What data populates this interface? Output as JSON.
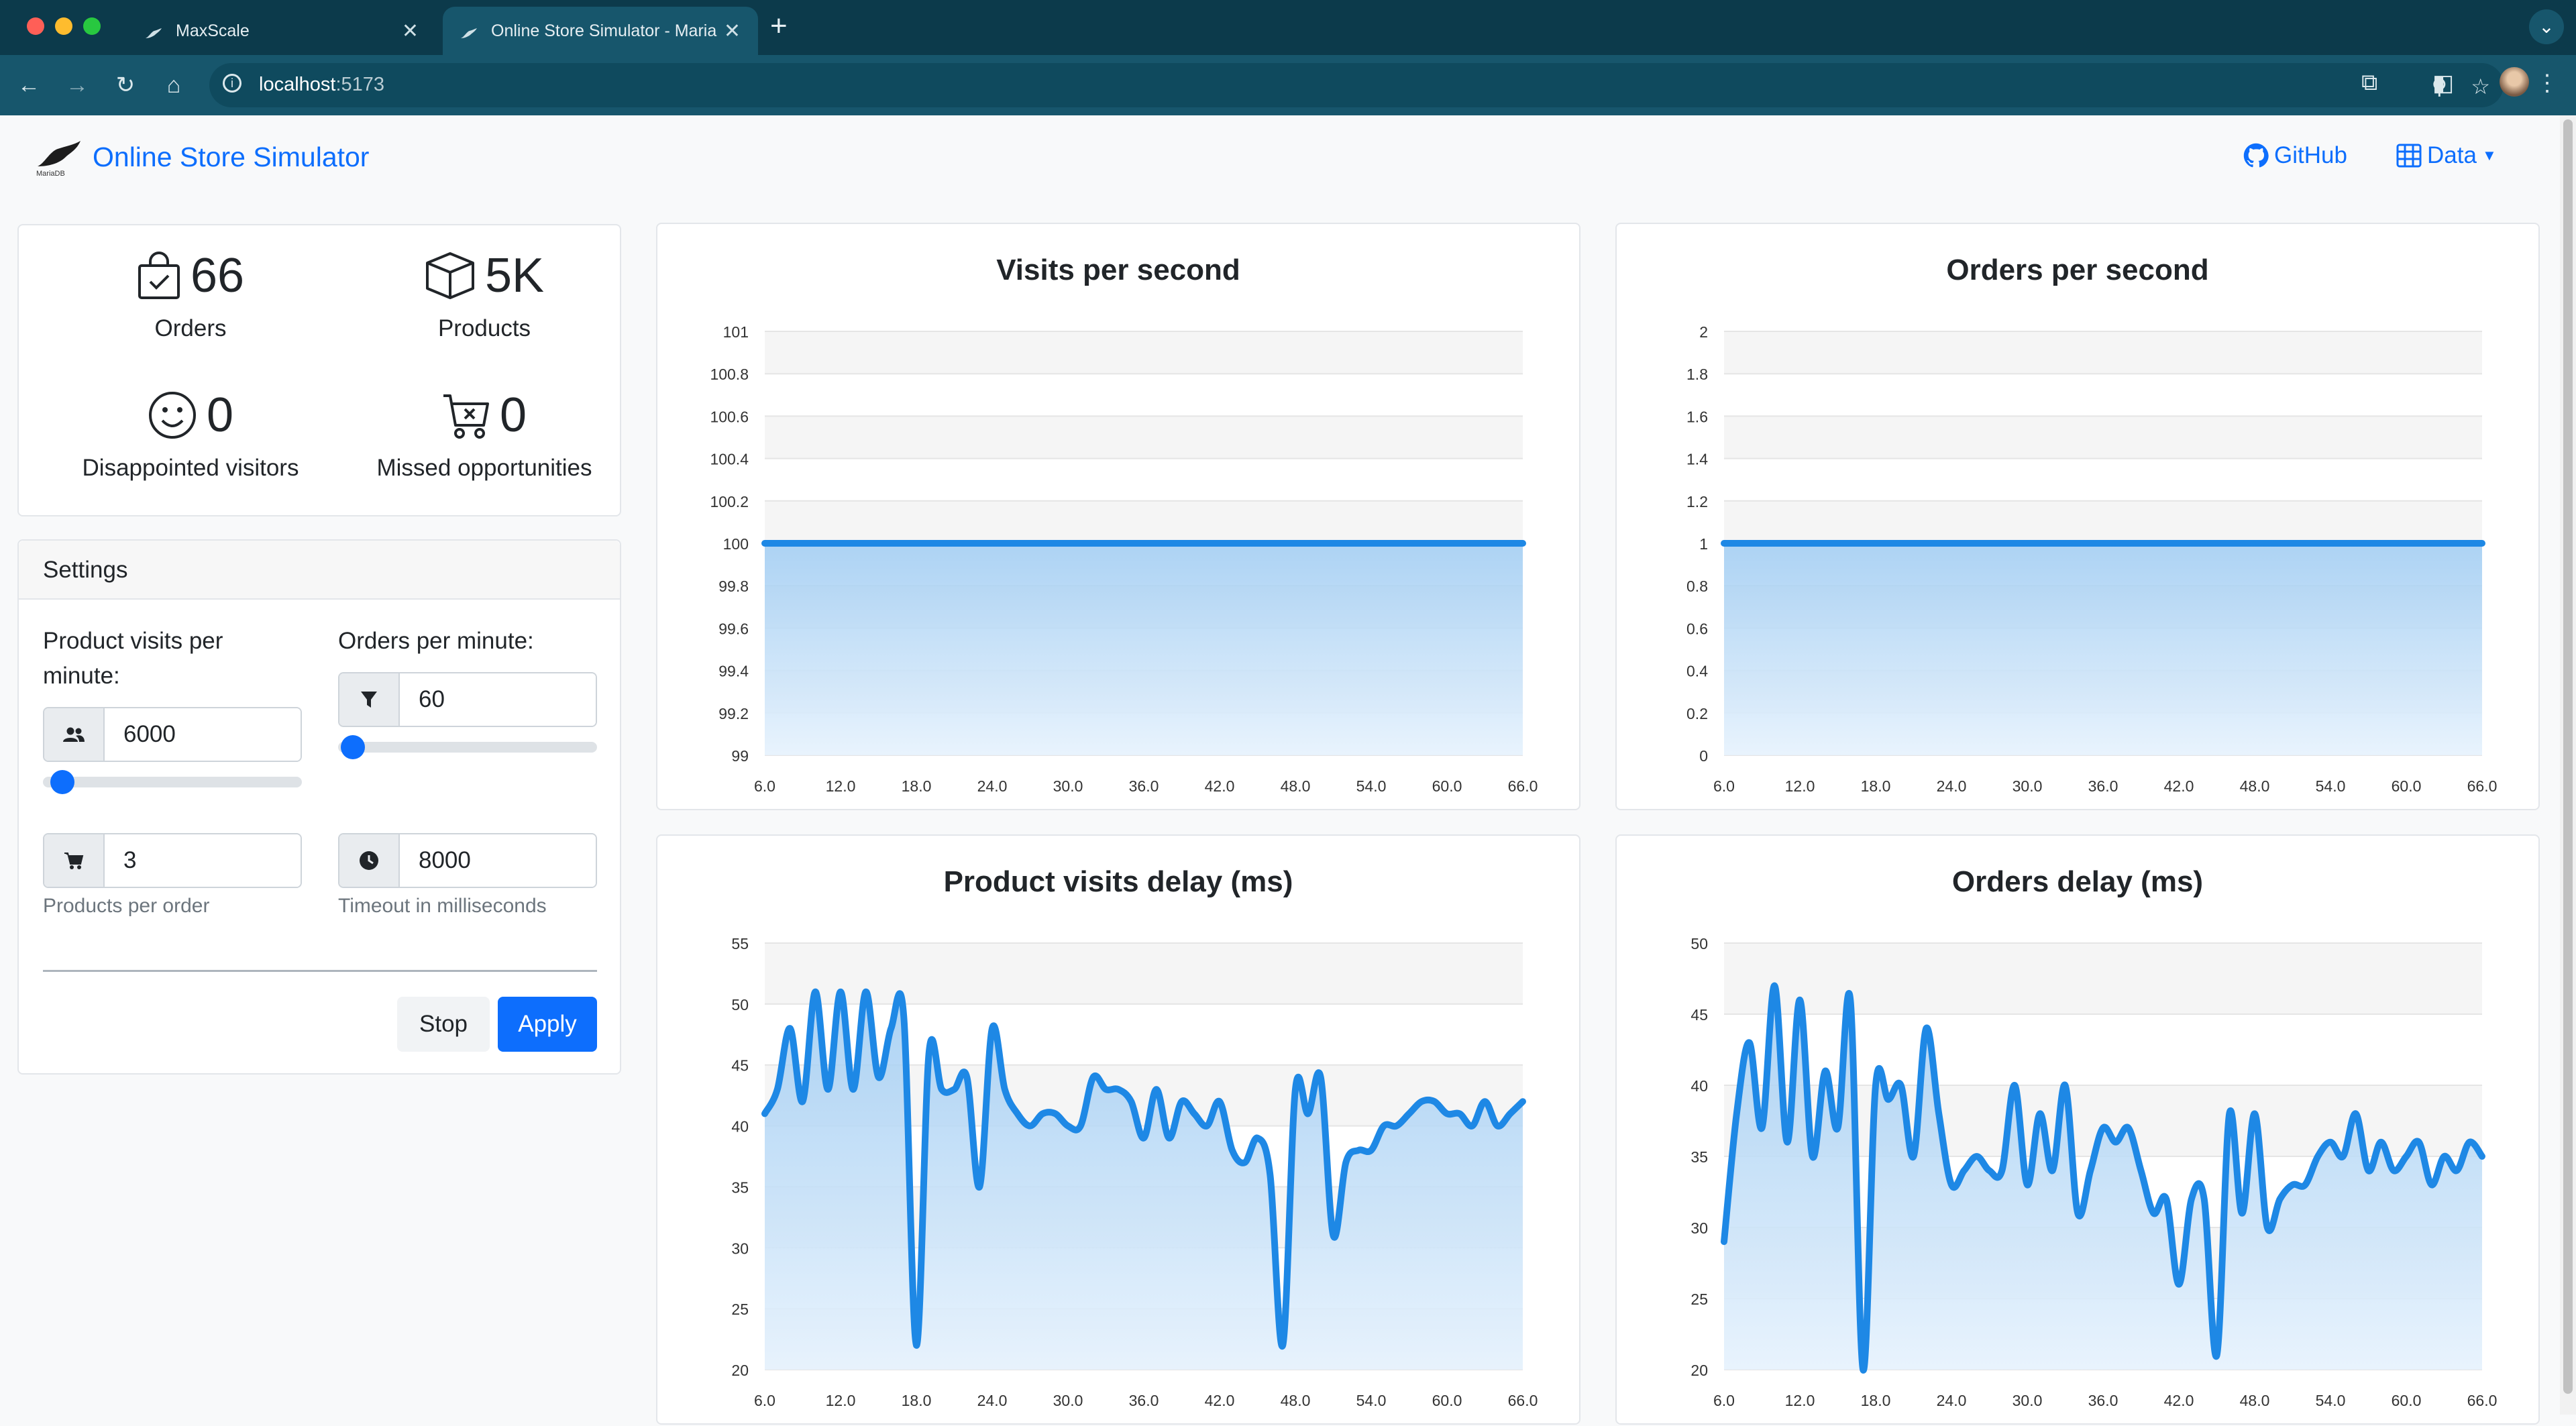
{
  "browser": {
    "tabs": [
      {
        "label": "MaxScale",
        "active": false
      },
      {
        "label": "Online Store Simulator - MariaDB",
        "active": true
      }
    ],
    "url_host": "localhost",
    "url_port": ":5173"
  },
  "header": {
    "brand_title": "Online Store Simulator",
    "logo_text": "MariaDB",
    "github_label": "GitHub",
    "data_label": "Data"
  },
  "stats": {
    "orders": {
      "value": "66",
      "label": "Orders",
      "icon": "shopping-bag-check-icon"
    },
    "products": {
      "value": "5K",
      "label": "Products",
      "icon": "box-icon"
    },
    "disappointed": {
      "value": "0",
      "label": "Disappointed visitors",
      "icon": "smiley-icon"
    },
    "missed": {
      "value": "0",
      "label": "Missed opportunities",
      "icon": "cart-x-icon"
    }
  },
  "settings": {
    "title": "Settings",
    "visits_label": "Product visits per minute:",
    "visits_value": "6000",
    "visits_slider": 0.03,
    "orders_label": "Orders per minute:",
    "orders_value": "60",
    "orders_slider": 0.01,
    "products_per_order_value": "3",
    "products_per_order_help": "Products per order",
    "timeout_value": "8000",
    "timeout_help": "Timeout in milliseconds",
    "stop_label": "Stop",
    "apply_label": "Apply"
  },
  "colors": {
    "accent": "#0d6efd",
    "line": "#1e88e5",
    "fill": "#bfdcf7"
  },
  "chart_data": [
    {
      "type": "area",
      "title": "Visits per second",
      "x": [
        6,
        7,
        8,
        9,
        10,
        11,
        12,
        13,
        14,
        15,
        16,
        17,
        18,
        19,
        20,
        21,
        22,
        23,
        24,
        25,
        26,
        27,
        28,
        29,
        30,
        31,
        32,
        33,
        34,
        35,
        36,
        37,
        38,
        39,
        40,
        41,
        42,
        43,
        44,
        45,
        46,
        47,
        48,
        49,
        50,
        51,
        52,
        53,
        54,
        55,
        56,
        57,
        58,
        59,
        60,
        61,
        62,
        63,
        64,
        65,
        66
      ],
      "values": [
        100,
        100,
        100,
        100,
        100,
        100,
        100,
        100,
        100,
        100,
        100,
        100,
        100,
        100,
        100,
        100,
        100,
        100,
        100,
        100,
        100,
        100,
        100,
        100,
        100,
        100,
        100,
        100,
        100,
        100,
        100,
        100,
        100,
        100,
        100,
        100,
        100,
        100,
        100,
        100,
        100,
        100,
        100,
        100,
        100,
        100,
        100,
        100,
        100,
        100,
        100,
        100,
        100,
        100,
        100,
        100,
        100,
        100,
        100,
        100,
        100
      ],
      "ylim": [
        99,
        101
      ],
      "yticks": [
        "99",
        "99.2",
        "99.4",
        "99.6",
        "99.8",
        "100",
        "100.2",
        "100.4",
        "100.6",
        "100.8",
        "101"
      ],
      "xticks": [
        "6.0",
        "12.0",
        "18.0",
        "24.0",
        "30.0",
        "36.0",
        "42.0",
        "48.0",
        "54.0",
        "60.0",
        "66.0"
      ]
    },
    {
      "type": "area",
      "title": "Orders per second",
      "x": [
        6,
        7,
        8,
        9,
        10,
        11,
        12,
        13,
        14,
        15,
        16,
        17,
        18,
        19,
        20,
        21,
        22,
        23,
        24,
        25,
        26,
        27,
        28,
        29,
        30,
        31,
        32,
        33,
        34,
        35,
        36,
        37,
        38,
        39,
        40,
        41,
        42,
        43,
        44,
        45,
        46,
        47,
        48,
        49,
        50,
        51,
        52,
        53,
        54,
        55,
        56,
        57,
        58,
        59,
        60,
        61,
        62,
        63,
        64,
        65,
        66
      ],
      "values": [
        1,
        1,
        1,
        1,
        1,
        1,
        1,
        1,
        1,
        1,
        1,
        1,
        1,
        1,
        1,
        1,
        1,
        1,
        1,
        1,
        1,
        1,
        1,
        1,
        1,
        1,
        1,
        1,
        1,
        1,
        1,
        1,
        1,
        1,
        1,
        1,
        1,
        1,
        1,
        1,
        1,
        1,
        1,
        1,
        1,
        1,
        1,
        1,
        1,
        1,
        1,
        1,
        1,
        1,
        1,
        1,
        1,
        1,
        1,
        1,
        1
      ],
      "ylim": [
        0,
        2
      ],
      "yticks": [
        "0",
        "0.2",
        "0.4",
        "0.6",
        "0.8",
        "1",
        "1.2",
        "1.4",
        "1.6",
        "1.8",
        "2"
      ],
      "xticks": [
        "6.0",
        "12.0",
        "18.0",
        "24.0",
        "30.0",
        "36.0",
        "42.0",
        "48.0",
        "54.0",
        "60.0",
        "66.0"
      ]
    },
    {
      "type": "area",
      "title": "Product visits delay (ms)",
      "x": [
        6,
        7,
        8,
        9,
        10,
        11,
        12,
        13,
        14,
        15,
        16,
        17,
        18,
        19,
        20,
        21,
        22,
        23,
        24,
        25,
        26,
        27,
        28,
        29,
        30,
        31,
        32,
        33,
        34,
        35,
        36,
        37,
        38,
        39,
        40,
        41,
        42,
        43,
        44,
        45,
        46,
        47,
        48,
        49,
        50,
        51,
        52,
        53,
        54,
        55,
        56,
        57,
        58,
        59,
        60,
        61,
        62,
        63,
        64,
        65,
        66
      ],
      "values": [
        41,
        43,
        48,
        42,
        51,
        43,
        51,
        43,
        51,
        44,
        48,
        49,
        22,
        46,
        43,
        43,
        44,
        35,
        48,
        43,
        41,
        40,
        41,
        41,
        40,
        40,
        44,
        43,
        43,
        42,
        39,
        43,
        39,
        42,
        41,
        40,
        42,
        38,
        37,
        39,
        36,
        22,
        43,
        41,
        44,
        31,
        37,
        38,
        38,
        40,
        40,
        41,
        42,
        42,
        41,
        41,
        40,
        42,
        40,
        41,
        42
      ],
      "ylim": [
        20,
        55
      ],
      "yticks": [
        "20",
        "25",
        "30",
        "35",
        "40",
        "45",
        "50",
        "55"
      ],
      "xticks": [
        "6.0",
        "12.0",
        "18.0",
        "24.0",
        "30.0",
        "36.0",
        "42.0",
        "48.0",
        "54.0",
        "60.0",
        "66.0"
      ]
    },
    {
      "type": "area",
      "title": "Orders delay (ms)",
      "x": [
        6,
        7,
        8,
        9,
        10,
        11,
        12,
        13,
        14,
        15,
        16,
        17,
        18,
        19,
        20,
        21,
        22,
        23,
        24,
        25,
        26,
        27,
        28,
        29,
        30,
        31,
        32,
        33,
        34,
        35,
        36,
        37,
        38,
        39,
        40,
        41,
        42,
        43,
        44,
        45,
        46,
        47,
        48,
        49,
        50,
        51,
        52,
        53,
        54,
        55,
        56,
        57,
        58,
        59,
        60,
        61,
        62,
        63,
        64,
        65,
        66
      ],
      "values": [
        29,
        38,
        43,
        37,
        47,
        36,
        46,
        35,
        41,
        37,
        46,
        20,
        40,
        39,
        40,
        35,
        44,
        38,
        33,
        34,
        35,
        34,
        34,
        40,
        33,
        38,
        34,
        40,
        31,
        34,
        37,
        36,
        37,
        34,
        31,
        32,
        26,
        32,
        32,
        21,
        38,
        31,
        38,
        30,
        32,
        33,
        33,
        35,
        36,
        35,
        38,
        34,
        36,
        34,
        35,
        36,
        33,
        35,
        34,
        36,
        35
      ],
      "ylim": [
        20,
        50
      ],
      "yticks": [
        "20",
        "25",
        "30",
        "35",
        "40",
        "45",
        "50"
      ],
      "xticks": [
        "6.0",
        "12.0",
        "18.0",
        "24.0",
        "30.0",
        "36.0",
        "42.0",
        "48.0",
        "54.0",
        "60.0",
        "66.0"
      ]
    }
  ]
}
